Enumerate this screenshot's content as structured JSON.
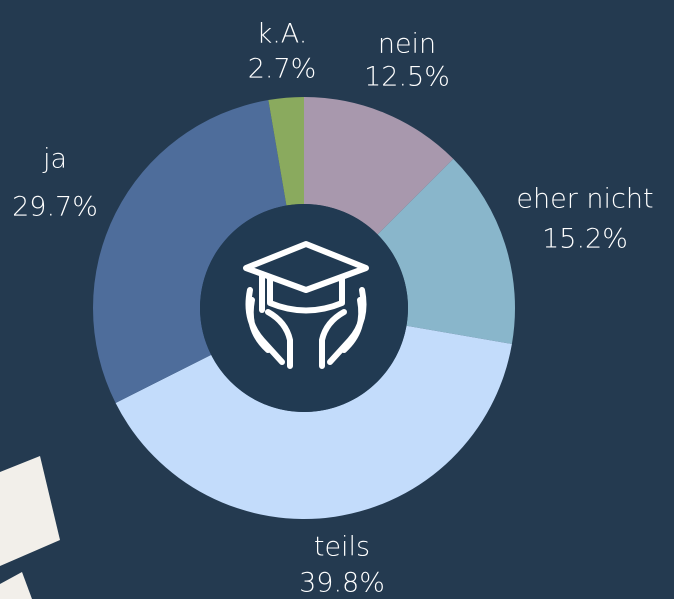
{
  "chart_data": {
    "type": "donut",
    "categories": [
      "nein",
      "eher nicht",
      "teils",
      "ja",
      "k.A."
    ],
    "values": [
      12.5,
      15.2,
      39.8,
      29.7,
      2.7
    ],
    "value_labels": [
      "12.5%",
      "15.2%",
      "39.8%",
      "29.7%",
      "2.7%"
    ],
    "colors": [
      "#a898ad",
      "#89b6cb",
      "#c3dcfb",
      "#4e6d9b",
      "#8aaa5e"
    ]
  }
}
